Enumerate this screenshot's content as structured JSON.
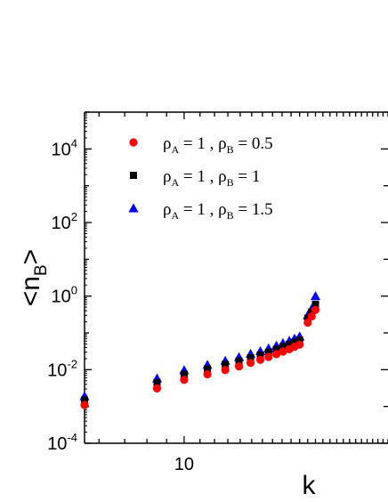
{
  "chart_data": {
    "type": "scatter",
    "xlabel": "k",
    "ylabel": {
      "main": "<n",
      "sub": "B",
      "close": ">"
    },
    "x_scale": "log",
    "y_scale": "log",
    "xlim": [
      5.5,
      34
    ],
    "ylim": [
      0.0001,
      100000
    ],
    "x_ticks": [
      {
        "value": 10,
        "label": "10"
      }
    ],
    "y_ticks": [
      {
        "value": 0.0001,
        "base": "10",
        "exp": "-4"
      },
      {
        "value": 0.01,
        "base": "10",
        "exp": "-2"
      },
      {
        "value": 1,
        "base": "10",
        "exp": "0"
      },
      {
        "value": 100,
        "base": "10",
        "exp": "2"
      },
      {
        "value": 10000,
        "base": "10",
        "exp": "4"
      }
    ],
    "legend_position": "top-left",
    "series": [
      {
        "legend": {
          "a": "ρ",
          "a_sub": "A",
          "mid": " = 1 , ",
          "b": "ρ",
          "b_sub": "B",
          "end": " = 0.5"
        },
        "marker": "circle",
        "color": "#ff0000",
        "points": [
          [
            5.5,
            0.0011
          ],
          [
            8.5,
            0.0031
          ],
          [
            10.0,
            0.0053
          ],
          [
            11.5,
            0.0075
          ],
          [
            12.8,
            0.0098
          ],
          [
            13.9,
            0.0123
          ],
          [
            14.9,
            0.0153
          ],
          [
            15.8,
            0.0185
          ],
          [
            16.6,
            0.0222
          ],
          [
            17.4,
            0.0265
          ],
          [
            18.1,
            0.031
          ],
          [
            18.8,
            0.036
          ],
          [
            19.4,
            0.042
          ],
          [
            20.0,
            0.048
          ],
          [
            21.0,
            0.19
          ],
          [
            21.5,
            0.28
          ],
          [
            22.0,
            0.42
          ]
        ]
      },
      {
        "legend": {
          "a": "ρ",
          "a_sub": "A",
          "mid": " = 1 , ",
          "b": "ρ",
          "b_sub": "B",
          "end": " = 1"
        },
        "marker": "square",
        "color": "#000000",
        "points": [
          [
            5.5,
            0.0015
          ],
          [
            8.5,
            0.0045
          ],
          [
            10.0,
            0.0075
          ],
          [
            11.5,
            0.0105
          ],
          [
            12.8,
            0.0138
          ],
          [
            13.9,
            0.0172
          ],
          [
            14.9,
            0.021
          ],
          [
            15.8,
            0.025
          ],
          [
            16.6,
            0.03
          ],
          [
            17.4,
            0.036
          ],
          [
            18.1,
            0.042
          ],
          [
            18.8,
            0.049
          ],
          [
            19.4,
            0.056
          ],
          [
            20.0,
            0.064
          ],
          [
            21.0,
            0.25
          ],
          [
            21.5,
            0.37
          ],
          [
            22.0,
            0.6
          ]
        ]
      },
      {
        "legend": {
          "a": "ρ",
          "a_sub": "A",
          "mid": " = 1 , ",
          "b": "ρ",
          "b_sub": "B",
          "end": " = 1.5"
        },
        "marker": "triangle",
        "color": "#0000ff",
        "points": [
          [
            5.5,
            0.0019
          ],
          [
            8.5,
            0.0058
          ],
          [
            10.0,
            0.0097
          ],
          [
            11.5,
            0.0135
          ],
          [
            12.8,
            0.0175
          ],
          [
            13.9,
            0.022
          ],
          [
            14.9,
            0.027
          ],
          [
            15.8,
            0.032
          ],
          [
            16.6,
            0.038
          ],
          [
            17.4,
            0.045
          ],
          [
            18.1,
            0.053
          ],
          [
            18.8,
            0.061
          ],
          [
            19.4,
            0.07
          ],
          [
            20.0,
            0.08
          ],
          [
            21.0,
            0.3
          ],
          [
            21.5,
            0.45
          ],
          [
            22.0,
            1.0
          ]
        ]
      }
    ]
  }
}
